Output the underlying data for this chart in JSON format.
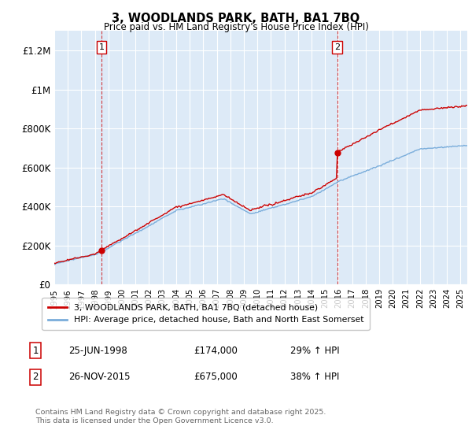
{
  "title": "3, WOODLANDS PARK, BATH, BA1 7BQ",
  "subtitle": "Price paid vs. HM Land Registry's House Price Index (HPI)",
  "ylim": [
    0,
    1300000
  ],
  "yticks": [
    0,
    200000,
    400000,
    600000,
    800000,
    1000000,
    1200000
  ],
  "ytick_labels": [
    "£0",
    "£200K",
    "£400K",
    "£600K",
    "£800K",
    "£1M",
    "£1.2M"
  ],
  "bg_color": "#ddeaf7",
  "red_color": "#cc0000",
  "blue_color": "#7aaddb",
  "grid_color": "#ffffff",
  "marker1_year": 1998.48,
  "marker1_price": 174000,
  "marker2_year": 2015.9,
  "marker2_price": 675000,
  "legend_label_red": "3, WOODLANDS PARK, BATH, BA1 7BQ (detached house)",
  "legend_label_blue": "HPI: Average price, detached house, Bath and North East Somerset",
  "annotation1_date": "25-JUN-1998",
  "annotation1_price": "£174,000",
  "annotation1_hpi": "29% ↑ HPI",
  "annotation2_date": "26-NOV-2015",
  "annotation2_price": "£675,000",
  "annotation2_hpi": "38% ↑ HPI",
  "footer": "Contains HM Land Registry data © Crown copyright and database right 2025.\nThis data is licensed under the Open Government Licence v3.0.",
  "xlim_start": 1995,
  "xlim_end": 2025.5
}
